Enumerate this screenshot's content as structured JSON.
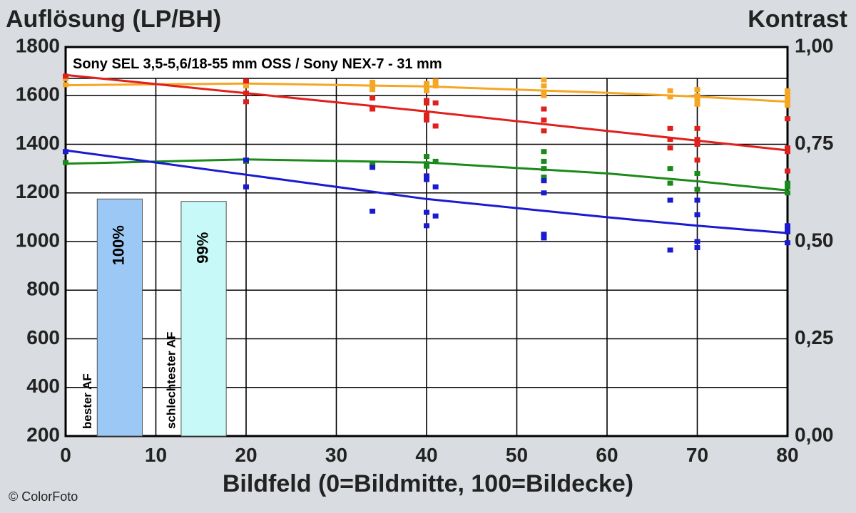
{
  "header": {
    "left_axis_title": "Auflösung (LP/BH)",
    "right_axis_title": "Kontrast"
  },
  "footer": {
    "copyright": "© ColorFoto"
  },
  "chart_data": {
    "type": "scatter",
    "title": "Sony SEL 3,5-5,6/18-55 mm OSS / Sony NEX-7 - 31 mm",
    "xlabel": "Bildfeld (0=Bildmitte, 100=Bildecke)",
    "ylabel": "Auflösung (LP/BH)",
    "y2label": "Kontrast",
    "xlim": [
      0,
      80
    ],
    "ylim": [
      200,
      1800
    ],
    "y2lim": [
      0,
      1
    ],
    "x_ticks": [
      "0",
      "10",
      "20",
      "30",
      "40",
      "50",
      "60",
      "70",
      "80"
    ],
    "y_ticks": [
      "200",
      "400",
      "600",
      "800",
      "1000",
      "1200",
      "1400",
      "1600",
      "1800"
    ],
    "y2_ticks": [
      "0,00",
      "0,25",
      "0,50",
      "0,75",
      "1,00"
    ],
    "grid": true,
    "colors": {
      "orange": "#f5a623",
      "red": "#e0201c",
      "green": "#1a8a1a",
      "blue": "#1a1ad0",
      "bar_best": "#9cc8f5",
      "bar_worst": "#c7f9f9"
    },
    "bars": [
      {
        "label": "bester AF",
        "value_label": "100%",
        "x_from": 3.5,
        "x_to": 8.5,
        "y_top": 1175,
        "color_key": "bar_best"
      },
      {
        "label": "schlechtester AF",
        "value_label": "99%",
        "x_from": 12.8,
        "x_to": 17.8,
        "y_top": 1165,
        "color_key": "bar_worst"
      }
    ],
    "series": [
      {
        "color_key": "orange",
        "trend": [
          [
            0,
            1643
          ],
          [
            20,
            1650
          ],
          [
            40,
            1638
          ],
          [
            60,
            1612
          ],
          [
            70,
            1596
          ],
          [
            80,
            1575
          ]
        ],
        "points": [
          [
            0,
            1670
          ],
          [
            0,
            1645
          ],
          [
            20,
            1655
          ],
          [
            20,
            1640
          ],
          [
            34,
            1640
          ],
          [
            34,
            1625
          ],
          [
            34,
            1655
          ],
          [
            40,
            1630
          ],
          [
            40,
            1650
          ],
          [
            40,
            1620
          ],
          [
            41,
            1660
          ],
          [
            41,
            1640
          ],
          [
            53,
            1665
          ],
          [
            53,
            1640
          ],
          [
            53,
            1615
          ],
          [
            53,
            1600
          ],
          [
            67,
            1620
          ],
          [
            67,
            1595
          ],
          [
            70,
            1625
          ],
          [
            70,
            1600
          ],
          [
            70,
            1580
          ],
          [
            70,
            1565
          ],
          [
            80,
            1620
          ],
          [
            80,
            1600
          ],
          [
            80,
            1580
          ],
          [
            80,
            1560
          ]
        ]
      },
      {
        "color_key": "red",
        "trend": [
          [
            0,
            1685
          ],
          [
            20,
            1610
          ],
          [
            40,
            1535
          ],
          [
            60,
            1455
          ],
          [
            70,
            1415
          ],
          [
            80,
            1375
          ]
        ],
        "points": [
          [
            0,
            1680
          ],
          [
            20,
            1660
          ],
          [
            20,
            1610
          ],
          [
            20,
            1575
          ],
          [
            34,
            1590
          ],
          [
            34,
            1545
          ],
          [
            40,
            1580
          ],
          [
            40,
            1570
          ],
          [
            40,
            1520
          ],
          [
            40,
            1500
          ],
          [
            41,
            1570
          ],
          [
            41,
            1475
          ],
          [
            53,
            1545
          ],
          [
            53,
            1500
          ],
          [
            53,
            1455
          ],
          [
            67,
            1465
          ],
          [
            67,
            1420
          ],
          [
            67,
            1385
          ],
          [
            70,
            1465
          ],
          [
            70,
            1420
          ],
          [
            70,
            1400
          ],
          [
            70,
            1335
          ],
          [
            80,
            1505
          ],
          [
            80,
            1385
          ],
          [
            80,
            1370
          ],
          [
            80,
            1290
          ]
        ]
      },
      {
        "color_key": "green",
        "trend": [
          [
            0,
            1320
          ],
          [
            20,
            1338
          ],
          [
            40,
            1325
          ],
          [
            60,
            1280
          ],
          [
            70,
            1248
          ],
          [
            80,
            1210
          ]
        ],
        "points": [
          [
            0,
            1325
          ],
          [
            20,
            1330
          ],
          [
            34,
            1320
          ],
          [
            40,
            1350
          ],
          [
            40,
            1320
          ],
          [
            40,
            1310
          ],
          [
            41,
            1330
          ],
          [
            53,
            1370
          ],
          [
            53,
            1330
          ],
          [
            53,
            1300
          ],
          [
            53,
            1265
          ],
          [
            67,
            1300
          ],
          [
            67,
            1240
          ],
          [
            70,
            1280
          ],
          [
            70,
            1215
          ],
          [
            80,
            1240
          ],
          [
            80,
            1225
          ],
          [
            80,
            1200
          ]
        ]
      },
      {
        "color_key": "blue",
        "trend": [
          [
            0,
            1375
          ],
          [
            20,
            1275
          ],
          [
            40,
            1175
          ],
          [
            60,
            1100
          ],
          [
            70,
            1065
          ],
          [
            80,
            1035
          ]
        ],
        "points": [
          [
            0,
            1370
          ],
          [
            20,
            1335
          ],
          [
            20,
            1225
          ],
          [
            34,
            1305
          ],
          [
            34,
            1125
          ],
          [
            40,
            1270
          ],
          [
            40,
            1255
          ],
          [
            40,
            1120
          ],
          [
            40,
            1065
          ],
          [
            41,
            1225
          ],
          [
            41,
            1105
          ],
          [
            53,
            1250
          ],
          [
            53,
            1200
          ],
          [
            53,
            1030
          ],
          [
            53,
            1015
          ],
          [
            67,
            1170
          ],
          [
            67,
            965
          ],
          [
            70,
            1170
          ],
          [
            70,
            1110
          ],
          [
            70,
            1000
          ],
          [
            70,
            975
          ],
          [
            80,
            1065
          ],
          [
            80,
            1050
          ],
          [
            80,
            1040
          ],
          [
            80,
            995
          ]
        ]
      }
    ]
  }
}
